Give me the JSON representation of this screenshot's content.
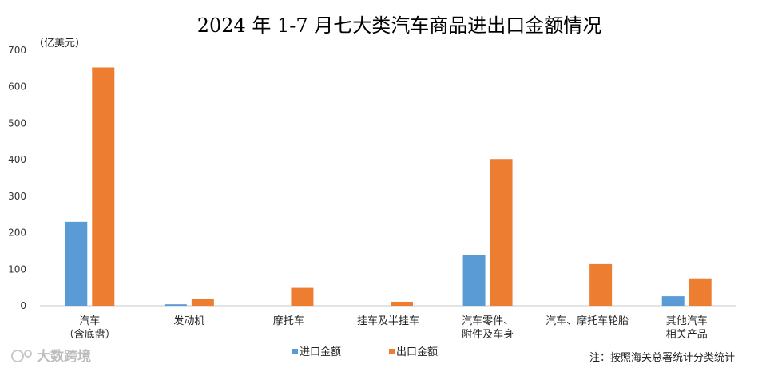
{
  "chart_data": {
    "type": "bar",
    "title": "2024 年 1-7 月七大类汽车商品进出口金额情况",
    "unit_label": "（亿美元）",
    "ylim": [
      0,
      700
    ],
    "yticks": [
      0,
      100,
      200,
      300,
      400,
      500,
      600,
      700
    ],
    "grid": false,
    "legend_position": "bottom",
    "categories": [
      [
        "汽车",
        "（含底盘）"
      ],
      [
        "发动机"
      ],
      [
        "摩托车"
      ],
      [
        "挂车及半挂车"
      ],
      [
        "汽车零件、",
        "附件及车身"
      ],
      [
        "汽车、摩托车轮胎"
      ],
      [
        "其他汽车",
        "相关产品"
      ]
    ],
    "series": [
      {
        "name": "进口金额",
        "color": "#5b9bd5",
        "values": [
          230,
          4,
          0,
          0,
          138,
          0,
          26
        ]
      },
      {
        "name": "出口金额",
        "color": "#ed7d31",
        "values": [
          653,
          18,
          49,
          11,
          402,
          114,
          75
        ]
      }
    ],
    "note": "注：按照海关总署统计分类统计",
    "watermark": "大数跨境"
  }
}
